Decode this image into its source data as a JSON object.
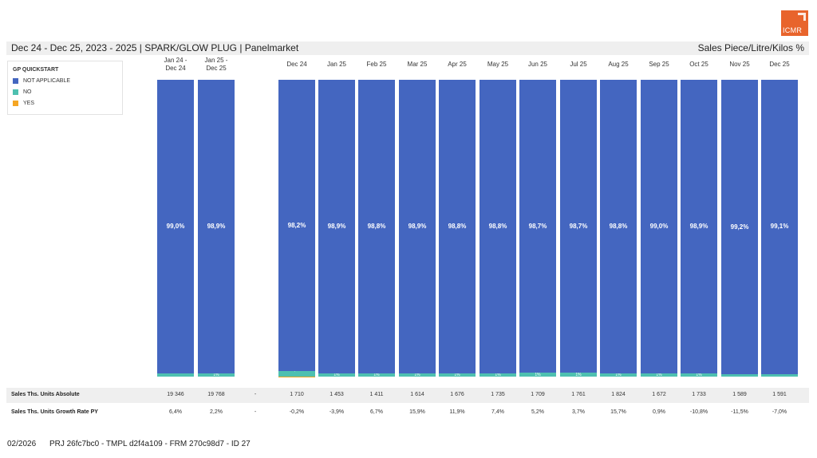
{
  "brand": {
    "logo_text": "ICMR",
    "color": "#e8642c"
  },
  "header": {
    "title": "Dec 24 - Dec 25, 2023 - 2025 | SPARK/GLOW PLUG | Panelmarket",
    "measure": "Sales Piece/Litre/Kilos %"
  },
  "legend": {
    "title": "GP QUICKSTART",
    "items": [
      {
        "label": "NOT APPLICABLE",
        "color": "#4466c0"
      },
      {
        "label": "NO",
        "color": "#4ec0b0"
      },
      {
        "label": "YES",
        "color": "#f5a623"
      }
    ]
  },
  "chart_data": {
    "type": "bar",
    "stacked": true,
    "title": "Dec 24 - Dec 25, 2023 - 2025 | SPARK/GLOW PLUG | Panelmarket",
    "ylabel": "Sales Piece/Litre/Kilos %",
    "ylim": [
      0,
      100
    ],
    "categories": [
      "Jan 24 - Dec 24",
      "Jan 25 - Dec 25",
      "Dec 24",
      "Jan 25",
      "Feb 25",
      "Mar 25",
      "Apr 25",
      "May 25",
      "Jun 25",
      "Jul 25",
      "Aug 25",
      "Sep 25",
      "Oct 25",
      "Nov 25",
      "Dec 25"
    ],
    "category_labels": [
      [
        "Jan 24 -",
        "Dec 24"
      ],
      [
        "Jan 25 -",
        "Dec 25"
      ],
      [
        "Dec 24"
      ],
      [
        "Jan 25"
      ],
      [
        "Feb 25"
      ],
      [
        "Mar 25"
      ],
      [
        "Apr 25"
      ],
      [
        "May 25"
      ],
      [
        "Jun 25"
      ],
      [
        "Jul 25"
      ],
      [
        "Aug 25"
      ],
      [
        "Sep 25"
      ],
      [
        "Oct 25"
      ],
      [
        "Nov 25"
      ],
      [
        "Dec 25"
      ]
    ],
    "series": [
      {
        "name": "NOT APPLICABLE",
        "color": "#4466c0",
        "values": [
          99.0,
          98.9,
          98.2,
          98.9,
          98.8,
          98.9,
          98.8,
          98.8,
          98.7,
          98.7,
          98.8,
          99.0,
          98.9,
          99.2,
          99.1
        ],
        "labels": [
          "99,0%",
          "98,9%",
          "98,2%",
          "98,9%",
          "98,8%",
          "98,9%",
          "98,8%",
          "98,8%",
          "98,7%",
          "98,7%",
          "98,8%",
          "99,0%",
          "98,9%",
          "99,2%",
          "99,1%"
        ]
      },
      {
        "name": "NO",
        "color": "#4ec0b0",
        "values": [
          1.0,
          1.1,
          1.7,
          1.1,
          1.2,
          1.1,
          1.2,
          1.2,
          1.3,
          1.3,
          1.2,
          1.0,
          1.1,
          0.8,
          0.9
        ],
        "labels": [
          "",
          "1%",
          "1,7%",
          "1%",
          "1%",
          "1%",
          "1%",
          "1%",
          "1%",
          "1%",
          "1%",
          "1%",
          "1%",
          "",
          ""
        ]
      },
      {
        "name": "YES",
        "color": "#f5a623",
        "values": [
          0,
          0,
          0.1,
          0,
          0,
          0,
          0,
          0,
          0,
          0,
          0,
          0,
          0,
          0,
          0
        ],
        "labels": [
          "",
          "",
          "",
          "",
          "",
          "",
          "",
          "",
          "",
          "",
          "",
          "",
          "",
          "",
          ""
        ]
      }
    ]
  },
  "table": {
    "rows": [
      {
        "label": "Sales Ths. Units Absolute",
        "values": [
          "19 346",
          "19 768",
          "-",
          "1 710",
          "1 453",
          "1 411",
          "1 614",
          "1 676",
          "1 735",
          "1 709",
          "1 761",
          "1 824",
          "1 672",
          "1 733",
          "1 589",
          "1 591"
        ]
      },
      {
        "label": "Sales Ths. Units Growth Rate PY",
        "values": [
          "6,4%",
          "2,2%",
          "-",
          "-0,2%",
          "-3,9%",
          "6,7%",
          "15,9%",
          "11,9%",
          "7,4%",
          "5,2%",
          "3,7%",
          "15,7%",
          "0,9%",
          "-10,8%",
          "-11,5%",
          "-7,0%"
        ]
      }
    ]
  },
  "footer": {
    "date": "02/2026",
    "ids": "PRJ 26fc7bc0 - TMPL d2f4a109 - FRM 270c98d7 - ID 27"
  }
}
